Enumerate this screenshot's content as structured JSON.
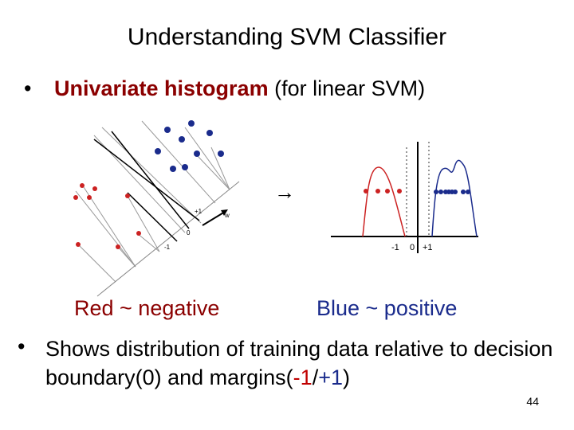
{
  "slide": {
    "title": "Understanding SVM Classifier",
    "bullet_symbol": "•",
    "line1_bold": "Univariate histogram",
    "line1_rest": " (for linear SVM)",
    "arrow_symbol": "→",
    "caption_red": "Red ~ negative",
    "caption_blue": "Blue ~ positive",
    "para_prefix": "Shows distribution of training data relative to decision boundary(0) and margins(",
    "para_neg": "-1",
    "para_slash": "/",
    "para_pos": "+1",
    "para_suffix": ")",
    "page_number": "44"
  },
  "left_plot": {
    "labels": {
      "plus1": "+1",
      "zero": "0",
      "minus1": "-1",
      "w": "w"
    }
  },
  "right_plot": {
    "ticks": {
      "minus1": "-1",
      "zero": "0",
      "plus1": "+1"
    }
  },
  "colors": {
    "red": "#cc2222",
    "blue": "#1a2b8c",
    "dark_red": "#8b0000"
  }
}
